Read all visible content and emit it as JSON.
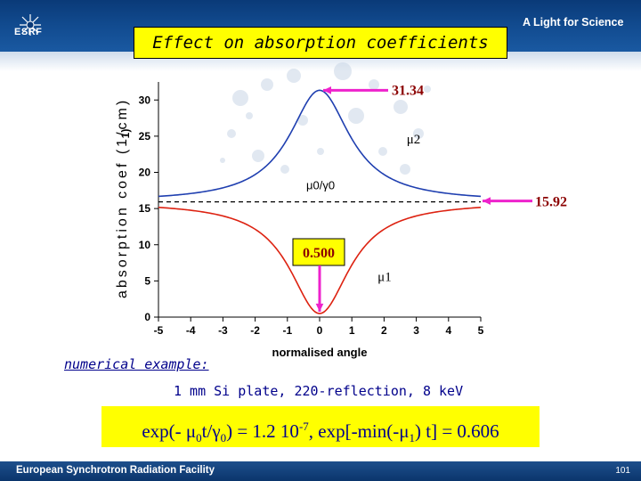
{
  "header": {
    "logo_text": "ESRF",
    "tagline": "A Light for Science"
  },
  "slide": {
    "title": "Effect on absorption coefficients",
    "numerical_title": "numerical example:",
    "example_text": "1 mm Si plate, 220-reflection, 8 keV",
    "formula": {
      "part1": "exp(- ",
      "mu": "μ",
      "sub0": "0",
      "t_over": "t/",
      "gamma": "γ",
      "sub0b": "0",
      "part2": ") = 1.2 10",
      "exp": "-7",
      "part3": ",  exp[-min(-",
      "mu2": "μ",
      "sub1": "1",
      "part4": ") t] = 0.606"
    }
  },
  "footer": {
    "text": "European Synchrotron Radiation Facility",
    "page": "101"
  },
  "chart_data": {
    "type": "line",
    "xlabel": "normalised angle",
    "ylabel_top": "1)",
    "ylabel_rotated": "absorption coef (1/cm)",
    "xlim": [
      -5,
      5
    ],
    "ylim": [
      0,
      32
    ],
    "x_ticks": [
      "-5",
      "-4",
      "-3",
      "-2",
      "-1",
      "0",
      "1",
      "2",
      "3",
      "4",
      "5"
    ],
    "y_ticks": [
      "0",
      "5",
      "10",
      "15",
      "20",
      "25",
      "30"
    ],
    "baseline": {
      "value": 15.92,
      "label": "μ0/γ0",
      "style": "dashed",
      "color": "#000000"
    },
    "series": [
      {
        "name": "μ2",
        "color": "#1f3fb0",
        "peak_x": 0,
        "peak_y": 31.34,
        "asymptote": 15.92
      },
      {
        "name": "μ1",
        "color": "#dd2211",
        "min_x": 0,
        "min_y": 0.5,
        "asymptote": 15.92
      }
    ],
    "annotations": [
      {
        "text": "31.34",
        "points_to": [
          0,
          31.34
        ],
        "arrow_color": "#ee22cc"
      },
      {
        "text": "15.92",
        "points_to": [
          5,
          15.92
        ],
        "arrow_color": "#ee22cc"
      },
      {
        "text": "0.500",
        "points_to": [
          0,
          0.5
        ],
        "arrow_color": "#ee22cc",
        "boxed": true,
        "box_color": "#ffff00"
      }
    ]
  }
}
